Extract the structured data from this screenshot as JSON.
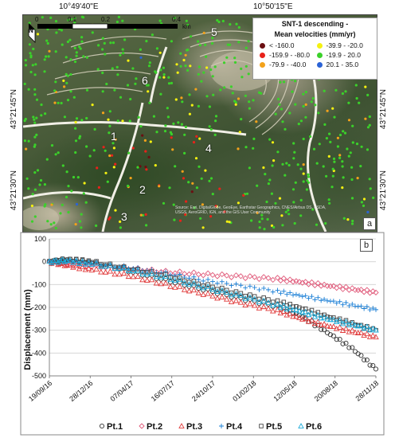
{
  "map": {
    "coords_top": [
      "10°49'40\"E",
      "10°50'15\"E"
    ],
    "coords_left": [
      "43°21'45\"N",
      "43°21'30\"N"
    ],
    "coords_right": [
      "43°21'45\"N",
      "43°21'30\"N"
    ],
    "scale_labels": [
      "0",
      "0.1",
      "0.2",
      "0.4"
    ],
    "scale_unit": "km",
    "north_label": "N",
    "panel_label": "a",
    "attribution": "Source: Esri, DigitalGlobe, GeoEye, Earthstar Geographics, CNES/Airbus DS, USDA, USGS, AeroGRID, IGN, and the GIS User Community",
    "point_labels": [
      "1",
      "2",
      "3",
      "4",
      "5",
      "6"
    ],
    "legend": {
      "title_line1": "SNT-1 descending -",
      "title_line2": "Mean velocities (mm/yr)",
      "classes": [
        {
          "label": "< -160.0",
          "color": "#6b0f12"
        },
        {
          "label": "-39.9 - -20.0",
          "color": "#f4f111"
        },
        {
          "label": "-159.9 - -80.0",
          "color": "#e8221a"
        },
        {
          "label": "-19.9 - 20.0",
          "color": "#3bd12a"
        },
        {
          "label": "-79.9 - -40.0",
          "color": "#f3a21b"
        },
        {
          "label": "20.1 - 35.0",
          "color": "#2b63d6"
        }
      ]
    }
  },
  "chart_data": {
    "type": "scatter",
    "panel_label": "b",
    "ylabel": "Displacement (mm)",
    "ylim": [
      -500,
      100
    ],
    "yticks": [
      100,
      0,
      -100,
      -200,
      -300,
      -400,
      -500
    ],
    "xlim": [
      "2016-09-19",
      "2018-11-28"
    ],
    "xtick_labels": [
      "19/09/16",
      "28/12/16",
      "07/04/17",
      "16/07/17",
      "24/10/17",
      "01/02/18",
      "12/05/18",
      "20/08/18",
      "28/11/18"
    ],
    "grid": "horizontal",
    "legend_position": "bottom",
    "series": [
      {
        "name": "Pt.1",
        "marker": "circle",
        "color": "#333333",
        "points": [
          [
            "2016-09-19",
            0
          ],
          [
            "2016-11-01",
            10
          ],
          [
            "2017-01-01",
            -5
          ],
          [
            "2017-04-01",
            -40
          ],
          [
            "2017-07-01",
            -80
          ],
          [
            "2017-10-01",
            -120
          ],
          [
            "2018-01-01",
            -160
          ],
          [
            "2018-04-01",
            -195
          ],
          [
            "2018-06-01",
            -240
          ],
          [
            "2018-08-01",
            -310
          ],
          [
            "2018-10-01",
            -380
          ],
          [
            "2018-11-28",
            -470
          ]
        ]
      },
      {
        "name": "Pt.2",
        "marker": "diamond",
        "color": "#e05a7a",
        "points": [
          [
            "2016-09-19",
            0
          ],
          [
            "2016-11-01",
            -10
          ],
          [
            "2017-01-01",
            -20
          ],
          [
            "2017-04-01",
            -30
          ],
          [
            "2017-07-01",
            -45
          ],
          [
            "2017-10-01",
            -55
          ],
          [
            "2018-01-01",
            -65
          ],
          [
            "2018-04-01",
            -75
          ],
          [
            "2018-06-01",
            -90
          ],
          [
            "2018-08-01",
            -105
          ],
          [
            "2018-10-01",
            -120
          ],
          [
            "2018-11-28",
            -135
          ]
        ]
      },
      {
        "name": "Pt.3",
        "marker": "triangle",
        "color": "#e03a3a",
        "points": [
          [
            "2016-09-19",
            0
          ],
          [
            "2016-11-01",
            -15
          ],
          [
            "2017-01-01",
            -35
          ],
          [
            "2017-04-01",
            -60
          ],
          [
            "2017-07-01",
            -100
          ],
          [
            "2017-10-01",
            -140
          ],
          [
            "2018-01-01",
            -180
          ],
          [
            "2018-04-01",
            -215
          ],
          [
            "2018-06-01",
            -250
          ],
          [
            "2018-08-01",
            -280
          ],
          [
            "2018-10-01",
            -305
          ],
          [
            "2018-11-28",
            -330
          ]
        ]
      },
      {
        "name": "Pt.4",
        "marker": "plus",
        "color": "#1a7fd6",
        "points": [
          [
            "2016-09-19",
            0
          ],
          [
            "2016-11-01",
            5
          ],
          [
            "2017-01-01",
            -5
          ],
          [
            "2017-04-01",
            -25
          ],
          [
            "2017-07-01",
            -50
          ],
          [
            "2017-10-01",
            -80
          ],
          [
            "2018-01-01",
            -105
          ],
          [
            "2018-04-01",
            -130
          ],
          [
            "2018-06-01",
            -150
          ],
          [
            "2018-08-01",
            -170
          ],
          [
            "2018-10-01",
            -190
          ],
          [
            "2018-11-28",
            -210
          ]
        ]
      },
      {
        "name": "Pt.5",
        "marker": "square",
        "color": "#444444",
        "points": [
          [
            "2016-09-19",
            0
          ],
          [
            "2016-11-01",
            10
          ],
          [
            "2017-01-01",
            0
          ],
          [
            "2017-04-01",
            -30
          ],
          [
            "2017-07-01",
            -60
          ],
          [
            "2017-10-01",
            -100
          ],
          [
            "2018-01-01",
            -140
          ],
          [
            "2018-04-01",
            -175
          ],
          [
            "2018-06-01",
            -205
          ],
          [
            "2018-08-01",
            -240
          ],
          [
            "2018-10-01",
            -270
          ],
          [
            "2018-11-28",
            -300
          ]
        ]
      },
      {
        "name": "Pt.6",
        "marker": "triangle-open",
        "color": "#19a9d8",
        "points": [
          [
            "2016-09-19",
            0
          ],
          [
            "2016-11-01",
            5
          ],
          [
            "2017-01-01",
            -10
          ],
          [
            "2017-04-01",
            -35
          ],
          [
            "2017-07-01",
            -70
          ],
          [
            "2017-10-01",
            -110
          ],
          [
            "2018-01-01",
            -150
          ],
          [
            "2018-04-01",
            -190
          ],
          [
            "2018-06-01",
            -220
          ],
          [
            "2018-08-01",
            -250
          ],
          [
            "2018-10-01",
            -275
          ],
          [
            "2018-11-28",
            -300
          ]
        ]
      }
    ]
  }
}
